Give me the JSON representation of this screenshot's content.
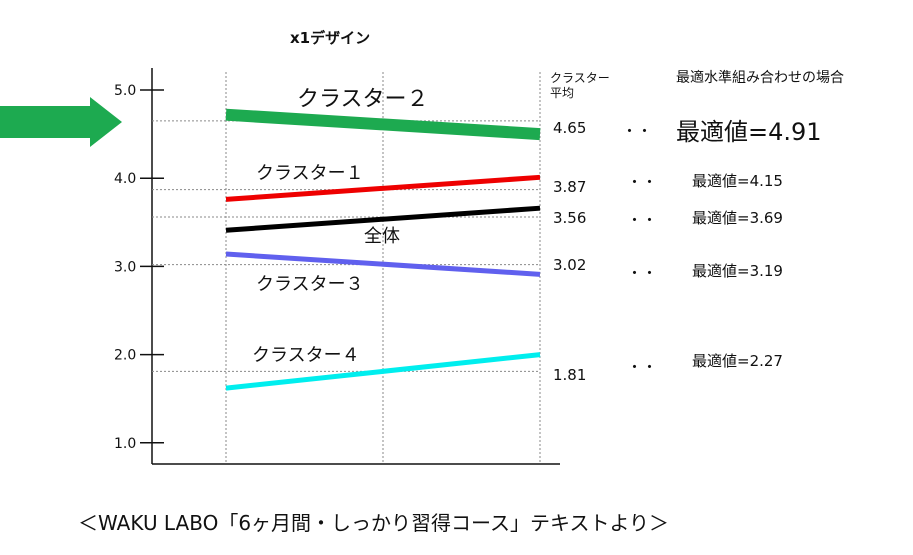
{
  "chart_data": {
    "type": "line",
    "title": "x1デザイン",
    "ylim": [
      1.0,
      5.0
    ],
    "y_ticks": [
      "5.0",
      "4.0",
      "3.0",
      "2.0",
      "1.0"
    ],
    "y_tick_values": [
      5.0,
      4.0,
      3.0,
      2.0,
      1.0
    ],
    "avg_header": "クラスター平均",
    "optimal_header": "最適水準組み合わせの場合",
    "grid": true,
    "series": [
      {
        "name": "クラスター２",
        "start": 4.72,
        "end": 4.5,
        "avg_label": "4.65",
        "avg": 4.65,
        "optimal_label": "最適値=4.91",
        "color": "#1daa50",
        "highlight": true
      },
      {
        "name": "クラスター１",
        "start": 3.76,
        "end": 4.01,
        "avg_label": "3.87",
        "avg": 3.87,
        "optimal_label": "最適値=4.15",
        "color": "#ee0000",
        "highlight": false
      },
      {
        "name": "全体",
        "start": 3.41,
        "end": 3.66,
        "avg_label": "3.56",
        "avg": 3.56,
        "optimal_label": "最適値=3.69",
        "color": "#000000",
        "highlight": false
      },
      {
        "name": "クラスター３",
        "start": 3.14,
        "end": 2.91,
        "avg_label": "3.02",
        "avg": 3.02,
        "optimal_label": "最適値=3.19",
        "color": "#6060ee",
        "highlight": false
      },
      {
        "name": "クラスター４",
        "start": 1.62,
        "end": 2.0,
        "avg_label": "1.81",
        "avg": 1.81,
        "optimal_label": "最適値=2.27",
        "color": "#00eeee",
        "highlight": false
      }
    ]
  },
  "dots": "・・",
  "caption": "＜WAKU LABO「6ヶ月間・しっかり習得コース」テキストより＞",
  "arrow_color": "#1daa50"
}
